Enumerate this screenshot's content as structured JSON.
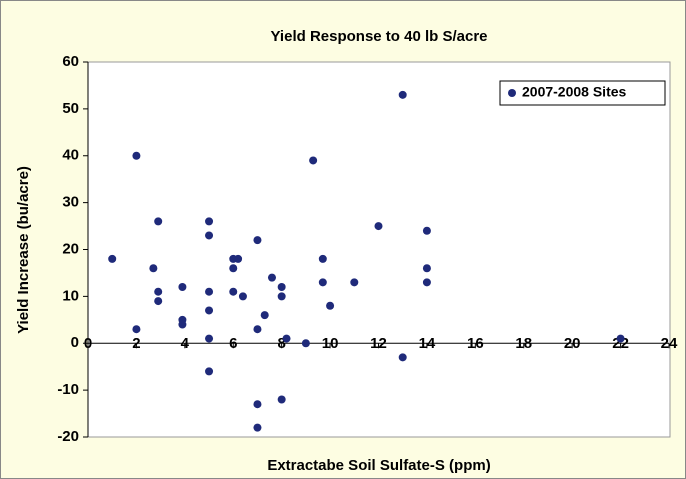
{
  "chart_data": {
    "type": "scatter",
    "title": "Yield Response to 40 lb S/acre",
    "x_label": "Extractabe Soil Sulfate-S (ppm)",
    "y_label": "Yield Increase (bu/acre)",
    "xlim": [
      0,
      24
    ],
    "xticks": [
      0,
      2,
      4,
      6,
      8,
      10,
      12,
      14,
      16,
      18,
      20,
      22,
      24
    ],
    "ylim": [
      -20,
      60
    ],
    "yticks": [
      -20,
      -10,
      0,
      10,
      20,
      30,
      40,
      50,
      60
    ],
    "legend": "top-right",
    "series": [
      {
        "name": "2007-2008 Sites",
        "color": "#1f2a7a",
        "x": [
          1,
          2,
          2,
          2.7,
          2.9,
          2.9,
          2.9,
          3.9,
          3.9,
          3.9,
          5,
          5,
          5,
          5,
          5,
          5,
          6,
          6.2,
          6,
          6,
          6.4,
          7,
          7,
          7,
          7,
          7.3,
          7.6,
          8,
          8,
          8.2,
          8,
          9,
          9.3,
          9.7,
          9.7,
          10,
          11,
          12,
          13,
          13,
          14,
          14,
          14,
          22
        ],
        "values": [
          18,
          40,
          3,
          16,
          26,
          11,
          9,
          12,
          5,
          4,
          26,
          23,
          11,
          7,
          1,
          -6,
          18,
          18,
          16,
          11,
          10,
          22,
          3,
          -13,
          -18,
          6,
          14,
          12,
          10,
          1,
          -12,
          0,
          39,
          18,
          13,
          8,
          13,
          25,
          53,
          -3,
          24,
          16,
          13,
          1
        ]
      }
    ]
  }
}
